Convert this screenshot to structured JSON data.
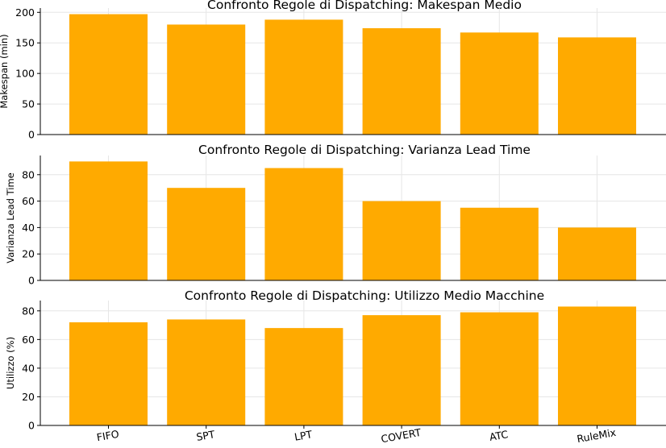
{
  "bar_color": "#FFAA00",
  "grid_color": "#e6e6e6",
  "chart_data": [
    {
      "type": "bar",
      "title": "Confronto Regole di Dispatching: Makespan Medio",
      "xlabel": "",
      "ylabel": "Makespan (min)",
      "categories": [
        "FIFO",
        "SPT",
        "LPT",
        "COVERT",
        "ATC",
        "RuleMix"
      ],
      "values": [
        197,
        180,
        188,
        174,
        167,
        159
      ],
      "ylim": [
        0,
        207
      ],
      "yticks": [
        0,
        50,
        100,
        150,
        200
      ],
      "grid": true
    },
    {
      "type": "bar",
      "title": "Confronto Regole di Dispatching: Varianza Lead Time",
      "xlabel": "",
      "ylabel": "Varianza Lead Time",
      "categories": [
        "FIFO",
        "SPT",
        "LPT",
        "COVERT",
        "ATC",
        "RuleMix"
      ],
      "values": [
        90,
        70,
        85,
        60,
        55,
        40
      ],
      "ylim": [
        0,
        94.5
      ],
      "yticks": [
        0,
        20,
        40,
        60,
        80
      ],
      "grid": true
    },
    {
      "type": "bar",
      "title": "Confronto Regole di Dispatching: Utilizzo Medio Macchine",
      "xlabel": "",
      "ylabel": "Utilizzo (%)",
      "categories": [
        "FIFO",
        "SPT",
        "LPT",
        "COVERT",
        "ATC",
        "RuleMix"
      ],
      "values": [
        72,
        74,
        68,
        77,
        79,
        83
      ],
      "ylim": [
        0,
        87.2
      ],
      "yticks": [
        0,
        20,
        40,
        60,
        80
      ],
      "grid": true,
      "show_category_labels": true
    }
  ]
}
